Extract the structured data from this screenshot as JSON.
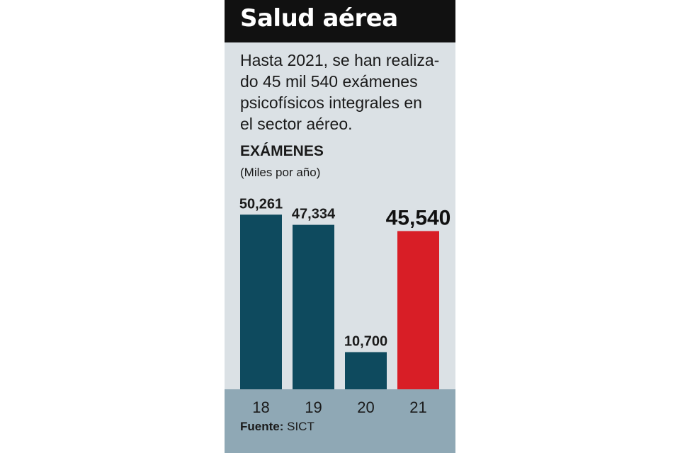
{
  "header": {
    "title": "Salud aérea"
  },
  "description_lines": [
    "Hasta 2021, se han realiza-",
    "do 45 mil 540 exámenes",
    "psicofísicos integrales en",
    "el sector aéreo."
  ],
  "chart_data": {
    "type": "bar",
    "title": "EXÁMENES",
    "subtitle": "(Miles por año)",
    "categories": [
      "18",
      "19",
      "20",
      "21"
    ],
    "values": [
      50261,
      47334,
      10700,
      45540
    ],
    "value_labels": [
      "50,261",
      "47,334",
      "10,700",
      "45,540"
    ],
    "highlight_index": 3,
    "ylim": [
      0,
      55000
    ],
    "grid": false,
    "colors": {
      "bar": "#0e4a5e",
      "highlight": "#d81e26"
    }
  },
  "colors": {
    "panel_bg": "#dbe1e5",
    "header_bg": "#111111",
    "footer_band": "#8fa8b5"
  },
  "source": {
    "label": "Fuente:",
    "value": "SICT"
  }
}
